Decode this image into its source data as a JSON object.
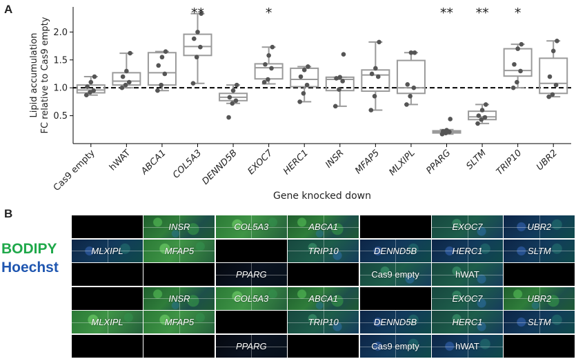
{
  "panel_a_letter": "A",
  "panel_b_letter": "B",
  "chart_data": {
    "type": "box",
    "title": "",
    "ylabel_line1": "Lipid accumulation",
    "ylabel_line2": "FC relative to Cas9 empty",
    "xlabel": "Gene knocked down",
    "ylim": [
      0.0,
      2.45
    ],
    "yticks": [
      "0.5",
      "1.0",
      "1.5",
      "2.0"
    ],
    "reference_line": 1.0,
    "colors": {
      "box": "#9a9a9a",
      "points": "#555555",
      "reference": "#000000"
    },
    "groups": [
      {
        "name": "Cas9 empty",
        "italic": false,
        "sig": "",
        "q1": 0.91,
        "median": 0.96,
        "q3": 1.05,
        "whisker_low": 0.87,
        "whisker_high": 1.2,
        "points": [
          0.87,
          0.92,
          0.95,
          1.02,
          1.1,
          1.2
        ]
      },
      {
        "name": "hWAT",
        "italic": false,
        "sig": "",
        "q1": 1.05,
        "median": 1.12,
        "q3": 1.27,
        "whisker_low": 1.0,
        "whisker_high": 1.62,
        "points": [
          1.0,
          1.05,
          1.1,
          1.2,
          1.3,
          1.62
        ]
      },
      {
        "name": "ABCA1",
        "italic": true,
        "sig": "",
        "q1": 1.05,
        "median": 1.27,
        "q3": 1.63,
        "whisker_low": 0.95,
        "whisker_high": 1.65,
        "points": [
          0.95,
          1.05,
          1.25,
          1.4,
          1.55,
          1.65
        ]
      },
      {
        "name": "COL5A3",
        "italic": true,
        "sig": "**",
        "q1": 1.58,
        "median": 1.74,
        "q3": 1.96,
        "whisker_low": 1.08,
        "whisker_high": 2.33,
        "points": [
          1.08,
          1.55,
          1.73,
          1.88,
          2.0,
          2.33
        ]
      },
      {
        "name": "DENND5B",
        "italic": true,
        "sig": "",
        "q1": 0.77,
        "median": 0.83,
        "q3": 0.9,
        "whisker_low": 0.72,
        "whisker_high": 1.05,
        "points": [
          0.47,
          0.72,
          0.77,
          0.83,
          0.95,
          1.05
        ]
      },
      {
        "name": "EXOC7",
        "italic": true,
        "sig": "*",
        "q1": 1.16,
        "median": 1.36,
        "q3": 1.43,
        "whisker_low": 1.07,
        "whisker_high": 1.73,
        "points": [
          1.1,
          1.15,
          1.35,
          1.42,
          1.58,
          1.73
        ]
      },
      {
        "name": "HERC1",
        "italic": true,
        "sig": "",
        "q1": 1.02,
        "median": 1.15,
        "q3": 1.35,
        "whisker_low": 0.75,
        "whisker_high": 1.38,
        "points": [
          0.75,
          0.9,
          1.05,
          1.2,
          1.32,
          1.38
        ]
      },
      {
        "name": "INSR",
        "italic": true,
        "sig": "",
        "q1": 0.95,
        "median": 1.15,
        "q3": 1.19,
        "whisker_low": 0.67,
        "whisker_high": 1.19,
        "points": [
          0.67,
          0.97,
          1.12,
          1.17,
          1.19,
          1.6
        ]
      },
      {
        "name": "MFAP5",
        "italic": true,
        "sig": "",
        "q1": 0.94,
        "median": 1.23,
        "q3": 1.32,
        "whisker_low": 0.6,
        "whisker_high": 1.82,
        "points": [
          0.6,
          0.85,
          1.2,
          1.25,
          1.35,
          1.82
        ]
      },
      {
        "name": "MLXIPL",
        "italic": true,
        "sig": "",
        "q1": 0.9,
        "median": 1.0,
        "q3": 1.49,
        "whisker_low": 0.7,
        "whisker_high": 1.63,
        "points": [
          0.7,
          0.85,
          1.0,
          1.06,
          1.63,
          1.63
        ]
      },
      {
        "name": "PPARG",
        "italic": true,
        "sig": "**",
        "q1": 0.19,
        "median": 0.21,
        "q3": 0.23,
        "whisker_low": 0.17,
        "whisker_high": 0.25,
        "points": [
          0.17,
          0.19,
          0.21,
          0.22,
          0.24,
          0.44
        ]
      },
      {
        "name": "SLTM",
        "italic": true,
        "sig": "**",
        "q1": 0.43,
        "median": 0.48,
        "q3": 0.58,
        "whisker_low": 0.36,
        "whisker_high": 0.7,
        "points": [
          0.36,
          0.43,
          0.47,
          0.5,
          0.6,
          0.7
        ]
      },
      {
        "name": "TRIP10",
        "italic": true,
        "sig": "*",
        "q1": 1.21,
        "median": 1.31,
        "q3": 1.7,
        "whisker_low": 1.0,
        "whisker_high": 1.78,
        "points": [
          1.0,
          1.1,
          1.3,
          1.42,
          1.7,
          1.78
        ]
      },
      {
        "name": "UBR2",
        "italic": true,
        "sig": "",
        "q1": 0.9,
        "median": 1.08,
        "q3": 1.53,
        "whisker_low": 0.84,
        "whisker_high": 1.84,
        "points": [
          0.84,
          0.88,
          1.05,
          1.2,
          1.66,
          1.84
        ]
      }
    ]
  },
  "panel_b": {
    "legend": [
      {
        "label": "BODIPY",
        "color": "#1fa84a"
      },
      {
        "label": "Hoechst",
        "color": "#1f56b0"
      }
    ],
    "rows": [
      [
        {
          "label": "",
          "italic": false,
          "style": "black"
        },
        {
          "label": "INSR",
          "italic": true,
          "style": "green"
        },
        {
          "label": "COL5A3",
          "italic": true,
          "style": "green2"
        },
        {
          "label": "ABCA1",
          "italic": true,
          "style": "green"
        },
        {
          "label": "",
          "italic": false,
          "style": "black"
        },
        {
          "label": "EXOC7",
          "italic": true,
          "style": "teal"
        },
        {
          "label": "UBR2",
          "italic": true,
          "style": "blue"
        }
      ],
      [
        {
          "label": "MLXIPL",
          "italic": true,
          "style": "blue"
        },
        {
          "label": "MFAP5",
          "italic": true,
          "style": "green2"
        },
        {
          "label": "",
          "italic": false,
          "style": "black"
        },
        {
          "label": "TRIP10",
          "italic": true,
          "style": "teal"
        },
        {
          "label": "DENND5B",
          "italic": true,
          "style": "blue"
        },
        {
          "label": "HERC1",
          "italic": true,
          "style": "blue"
        },
        {
          "label": "SLTM",
          "italic": true,
          "style": "blue"
        }
      ],
      [
        {
          "label": "",
          "italic": false,
          "style": "black"
        },
        {
          "label": "",
          "italic": false,
          "style": "black"
        },
        {
          "label": "PPARG",
          "italic": true,
          "style": "dark"
        },
        {
          "label": "",
          "italic": false,
          "style": "black"
        },
        {
          "label": "Cas9 empty",
          "italic": false,
          "style": "teal"
        },
        {
          "label": "hWAT",
          "italic": false,
          "style": "teal"
        },
        {
          "label": "",
          "italic": false,
          "style": "black"
        }
      ],
      [
        {
          "label": "",
          "italic": false,
          "style": "black"
        },
        {
          "label": "INSR",
          "italic": true,
          "style": "green"
        },
        {
          "label": "COL5A3",
          "italic": true,
          "style": "green2"
        },
        {
          "label": "ABCA1",
          "italic": true,
          "style": "green"
        },
        {
          "label": "",
          "italic": false,
          "style": "black"
        },
        {
          "label": "EXOC7",
          "italic": true,
          "style": "teal"
        },
        {
          "label": "UBR2",
          "italic": true,
          "style": "green"
        }
      ],
      [
        {
          "label": "MLXIPL",
          "italic": true,
          "style": "green2"
        },
        {
          "label": "MFAP5",
          "italic": true,
          "style": "green2"
        },
        {
          "label": "",
          "italic": false,
          "style": "black"
        },
        {
          "label": "TRIP10",
          "italic": true,
          "style": "teal"
        },
        {
          "label": "DENND5B",
          "italic": true,
          "style": "blue"
        },
        {
          "label": "HERC1",
          "italic": true,
          "style": "teal"
        },
        {
          "label": "SLTM",
          "italic": true,
          "style": "blue"
        }
      ],
      [
        {
          "label": "",
          "italic": false,
          "style": "black"
        },
        {
          "label": "",
          "italic": false,
          "style": "black"
        },
        {
          "label": "PPARG",
          "italic": true,
          "style": "dark"
        },
        {
          "label": "",
          "italic": false,
          "style": "black"
        },
        {
          "label": "Cas9 empty",
          "italic": false,
          "style": "blue"
        },
        {
          "label": "hWAT",
          "italic": false,
          "style": "blue"
        },
        {
          "label": "",
          "italic": false,
          "style": "black"
        }
      ]
    ]
  }
}
